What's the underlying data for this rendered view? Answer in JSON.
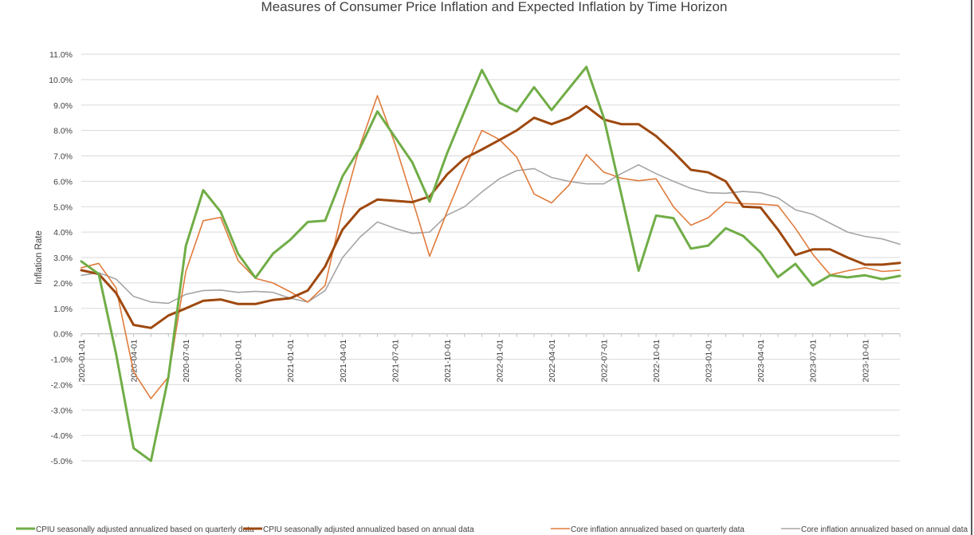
{
  "chart_data": {
    "type": "line",
    "title": "Measures of Consumer Price Inflation and Expected Inflation by Time Horizon",
    "xlabel": "",
    "ylabel": "Inflation Rate",
    "ylim": [
      -5.0,
      11.0
    ],
    "y_ticks": [
      11.0,
      10.0,
      9.0,
      8.0,
      7.0,
      6.0,
      5.0,
      4.0,
      3.0,
      2.0,
      1.0,
      0.0,
      -1.0,
      -2.0,
      -3.0,
      -4.0,
      -5.0
    ],
    "y_tick_labels": [
      "11.0%",
      "10.0%",
      "9.0%",
      "8.0%",
      "7.0%",
      "6.0%",
      "5.0%",
      "4.0%",
      "3.0%",
      "2.0%",
      "1.0%",
      "0.0%",
      "-1.0%",
      "-2.0%",
      "-3.0%",
      "-4.0%",
      "-5.0%"
    ],
    "grid": true,
    "legend_position": "bottom",
    "x": [
      "2020-01-01",
      "2020-02-01",
      "2020-03-01",
      "2020-04-01",
      "2020-05-01",
      "2020-06-01",
      "2020-07-01",
      "2020-08-01",
      "2020-09-01",
      "2020-10-01",
      "2020-11-01",
      "2020-12-01",
      "2021-01-01",
      "2021-02-01",
      "2021-03-01",
      "2021-04-01",
      "2021-05-01",
      "2021-06-01",
      "2021-07-01",
      "2021-08-01",
      "2021-09-01",
      "2021-10-01",
      "2021-11-01",
      "2021-12-01",
      "2022-01-01",
      "2022-02-01",
      "2022-03-01",
      "2022-04-01",
      "2022-05-01",
      "2022-06-01",
      "2022-07-01",
      "2022-08-01",
      "2022-09-01",
      "2022-10-01",
      "2022-11-01",
      "2022-12-01",
      "2023-01-01",
      "2023-02-01",
      "2023-03-01",
      "2023-04-01",
      "2023-05-01",
      "2023-06-01",
      "2023-07-01",
      "2023-08-01",
      "2023-09-01",
      "2023-10-01",
      "2023-11-01",
      "2023-12-01"
    ],
    "x_tick_labels": [
      "2020-01-01",
      "2020-04-01",
      "2020-07-01",
      "2020-10-01",
      "2021-01-01",
      "2021-04-01",
      "2021-07-01",
      "2021-10-01",
      "2022-01-01",
      "2022-04-01",
      "2022-07-01",
      "2022-10-01",
      "2023-01-01",
      "2023-04-01",
      "2023-07-01",
      "2023-10-01"
    ],
    "series": [
      {
        "name": "CPIU seasonally adjusted annualized based on quarterly data",
        "color": "#70ad47",
        "values": [
          2.85,
          2.35,
          -0.8,
          -4.5,
          -5.0,
          -1.7,
          3.45,
          5.65,
          4.8,
          3.15,
          2.2,
          3.15,
          3.7,
          4.4,
          4.45,
          6.2,
          7.3,
          8.75,
          7.75,
          6.75,
          5.2,
          7.1,
          8.75,
          10.38,
          9.1,
          8.75,
          9.7,
          8.8,
          9.65,
          10.5,
          8.5,
          5.5,
          2.48,
          4.65,
          4.55,
          3.35,
          3.47,
          4.15,
          3.85,
          3.2,
          2.23,
          2.75,
          1.9,
          2.3,
          2.22,
          2.3,
          2.15,
          2.28
        ]
      },
      {
        "name": "CPIU seasonally adjusted annualized based on annual data",
        "color": "#9e480e",
        "values": [
          2.5,
          2.35,
          1.6,
          0.35,
          0.23,
          0.72,
          1.0,
          1.3,
          1.35,
          1.17,
          1.17,
          1.33,
          1.4,
          1.7,
          2.65,
          4.1,
          4.9,
          5.28,
          5.23,
          5.18,
          5.4,
          6.27,
          6.9,
          7.25,
          7.62,
          8.0,
          8.5,
          8.25,
          8.5,
          8.95,
          8.43,
          8.25,
          8.25,
          7.78,
          7.15,
          6.45,
          6.35,
          6.0,
          5.0,
          4.97,
          4.1,
          3.1,
          3.32,
          3.32,
          3.0,
          2.72,
          2.72,
          2.79
        ]
      },
      {
        "name": "Core inflation annualized based on quarterly data",
        "color": "#e07b3c",
        "values": [
          2.6,
          2.77,
          1.8,
          -1.5,
          -2.55,
          -1.7,
          2.45,
          4.45,
          4.58,
          2.88,
          2.18,
          2.0,
          1.65,
          1.25,
          1.9,
          4.9,
          7.4,
          9.37,
          7.5,
          5.3,
          3.05,
          4.8,
          6.45,
          8.0,
          7.65,
          6.95,
          5.5,
          5.15,
          5.85,
          7.05,
          6.36,
          6.12,
          6.02,
          6.1,
          5.0,
          4.27,
          4.57,
          5.18,
          5.12,
          5.1,
          5.05,
          4.15,
          3.13,
          2.32,
          2.48,
          2.6,
          2.45,
          2.5
        ]
      },
      {
        "name": "Core inflation annualized based on annual data",
        "color": "#a5a5a5",
        "values": [
          2.3,
          2.4,
          2.15,
          1.47,
          1.25,
          1.2,
          1.55,
          1.7,
          1.72,
          1.63,
          1.67,
          1.63,
          1.4,
          1.25,
          1.7,
          3.0,
          3.8,
          4.4,
          4.15,
          3.95,
          4.0,
          4.67,
          5.0,
          5.58,
          6.1,
          6.42,
          6.5,
          6.15,
          6.0,
          5.9,
          5.9,
          6.3,
          6.65,
          6.3,
          6.0,
          5.72,
          5.55,
          5.53,
          5.6,
          5.55,
          5.35,
          4.88,
          4.7,
          4.35,
          4.0,
          3.83,
          3.73,
          3.52
        ]
      }
    ]
  }
}
